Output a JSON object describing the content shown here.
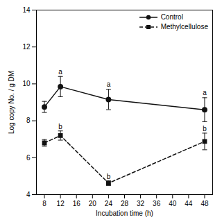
{
  "chart_data": {
    "type": "line",
    "xlabel": "Incubation time (h)",
    "ylabel": "Log copy No. / g DM",
    "x": [
      8,
      12,
      24,
      48
    ],
    "series": [
      {
        "name": "Control",
        "color": "#111111",
        "marker": "circle",
        "line_style": "solid",
        "values": [
          8.75,
          9.85,
          9.15,
          8.6
        ],
        "yerr": [
          0.3,
          0.55,
          0.55,
          0.65
        ]
      },
      {
        "name": "Methylcellulose",
        "color": "#111111",
        "marker": "square",
        "line_style": "dashed",
        "values": [
          6.8,
          7.2,
          4.62,
          6.88
        ],
        "yerr": [
          0.18,
          0.25,
          0.12,
          0.45
        ]
      }
    ],
    "annotations": [
      {
        "text": "a",
        "x": 12,
        "y": 10.5
      },
      {
        "text": "a",
        "x": 24,
        "y": 9.82
      },
      {
        "text": "a",
        "x": 48,
        "y": 9.35
      },
      {
        "text": "b",
        "x": 12,
        "y": 7.52
      },
      {
        "text": "b",
        "x": 24,
        "y": 4.82
      },
      {
        "text": "b",
        "x": 48,
        "y": 7.42
      }
    ],
    "xlim": [
      6,
      50
    ],
    "xticks": [
      8,
      12,
      16,
      20,
      24,
      28,
      32,
      36,
      40,
      44,
      48
    ],
    "ylim": [
      4,
      14
    ],
    "yticks": [
      4,
      6,
      8,
      10,
      12,
      14
    ],
    "grid": false,
    "legend": "upper right"
  }
}
